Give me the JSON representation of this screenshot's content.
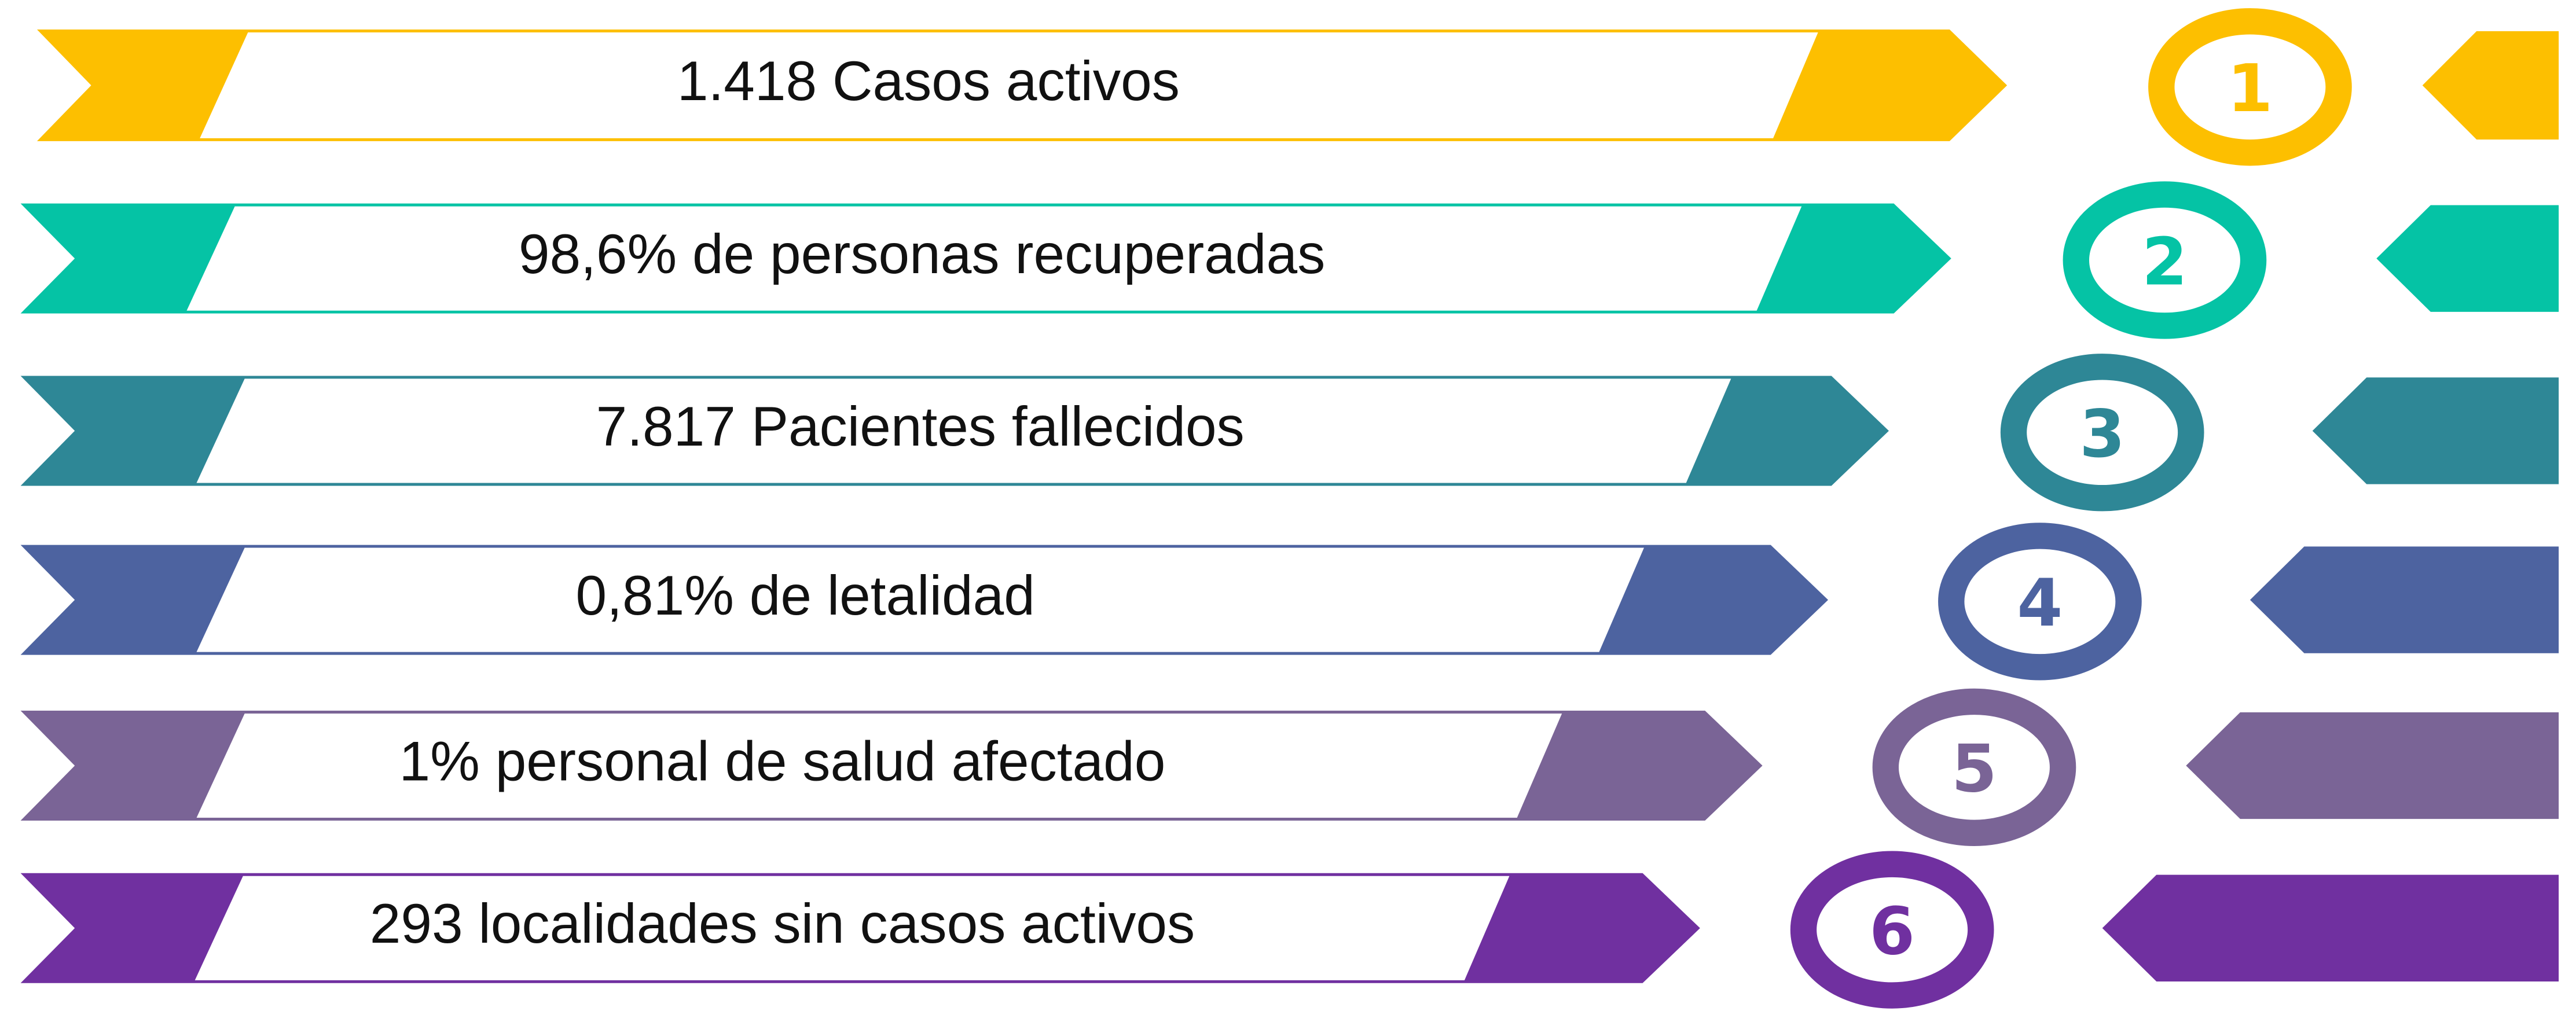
{
  "items": [
    {
      "number": "1",
      "label": "1.418 Casos activos",
      "color": "#fdbf00"
    },
    {
      "number": "2",
      "label": "98,6% de personas recuperadas",
      "color": "#05c3a5"
    },
    {
      "number": "3",
      "label": "7.817 Pacientes fallecidos",
      "color": "#2e8796"
    },
    {
      "number": "4",
      "label": "0,81% de letalidad",
      "color": "#4d63a0"
    },
    {
      "number": "5",
      "label": "1% personal de salud afectado",
      "color": "#7a6496"
    },
    {
      "number": "6",
      "label": "293 localidades sin casos activos",
      "color": "#7030a0"
    }
  ]
}
